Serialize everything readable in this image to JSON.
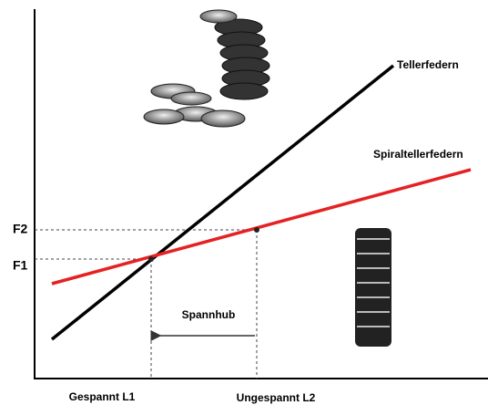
{
  "diagram": {
    "curves": [
      {
        "label": "Tellerfedern"
      },
      {
        "label": "Spiraltellerfedern"
      }
    ],
    "y_labels": [
      "F2",
      "F1"
    ],
    "x_labels": [
      "Gespannt L1",
      "Ungespannt L2"
    ],
    "annotation": "Spannhub"
  }
}
